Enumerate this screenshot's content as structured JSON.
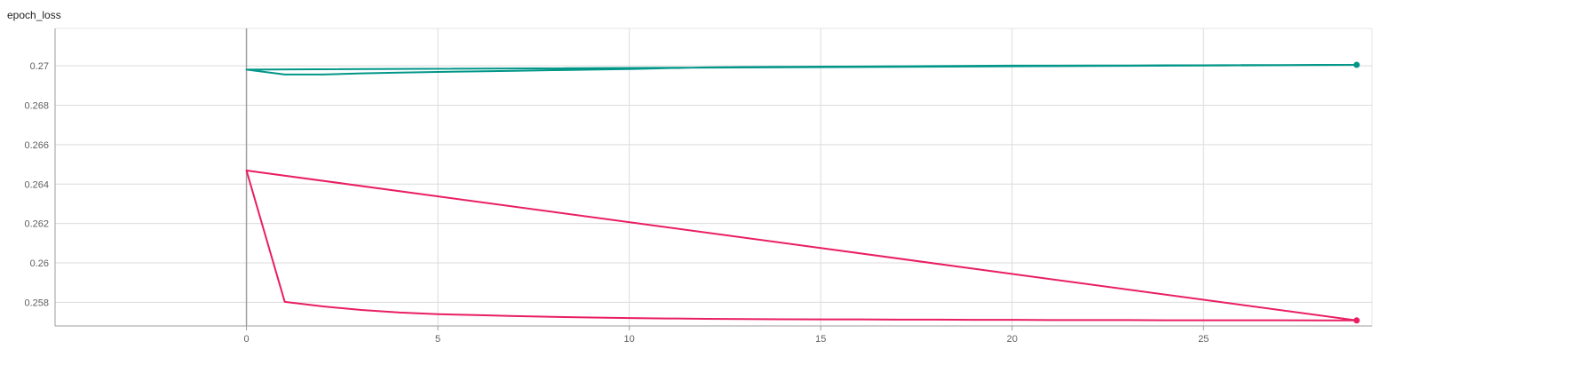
{
  "chart_data": {
    "type": "line",
    "title": "epoch_loss",
    "xlabel": "",
    "ylabel": "",
    "xlim": [
      -5,
      29.4
    ],
    "ylim": [
      0.2568,
      0.2719
    ],
    "x_ticks": [
      0,
      5,
      10,
      15,
      20,
      25
    ],
    "x_tick_labels": [
      "0",
      "5",
      "10",
      "15",
      "20",
      "25"
    ],
    "y_ticks": [
      0.258,
      0.26,
      0.262,
      0.264,
      0.266,
      0.268,
      0.27
    ],
    "y_tick_labels": [
      "0.258",
      "0.26",
      "0.262",
      "0.264",
      "0.266",
      "0.268",
      "0.27"
    ],
    "grid": true,
    "series": [
      {
        "color": "#009688",
        "x": [
          0,
          29,
          0,
          1,
          2,
          3,
          4,
          5,
          6,
          7,
          8,
          9,
          10,
          11,
          12,
          13,
          14,
          15,
          16,
          17,
          18,
          19,
          20,
          21,
          22,
          23,
          24,
          25,
          26,
          27,
          28,
          29
        ],
        "values": [
          0.26981,
          0.27005,
          0.26981,
          0.26956,
          0.26956,
          0.26962,
          0.26966,
          0.26969,
          0.26972,
          0.26975,
          0.26978,
          0.26981,
          0.26984,
          0.26988,
          0.26992,
          0.26994,
          0.26995,
          0.26996,
          0.26997,
          0.26998,
          0.26999,
          0.27,
          0.27001,
          0.27001,
          0.27002,
          0.27002,
          0.27003,
          0.27003,
          0.27004,
          0.27004,
          0.27005,
          0.27005
        ]
      },
      {
        "color": "#e91e63",
        "x": [
          0,
          29,
          0,
          1,
          2,
          3,
          4,
          5,
          6,
          7,
          8,
          9,
          10,
          11,
          12,
          13,
          14,
          15,
          16,
          17,
          18,
          19,
          20,
          21,
          22,
          23,
          24,
          25,
          26,
          27,
          28,
          29
        ],
        "values": [
          0.26469,
          0.25708,
          0.26469,
          0.25802,
          0.25779,
          0.25761,
          0.25748,
          0.2574,
          0.25735,
          0.2573,
          0.25726,
          0.25723,
          0.2572,
          0.25718,
          0.25716,
          0.25715,
          0.25714,
          0.25713,
          0.25713,
          0.25712,
          0.25712,
          0.25711,
          0.25711,
          0.2571,
          0.2571,
          0.2571,
          0.25709,
          0.25709,
          0.25709,
          0.25709,
          0.25708,
          0.25708
        ]
      }
    ]
  }
}
